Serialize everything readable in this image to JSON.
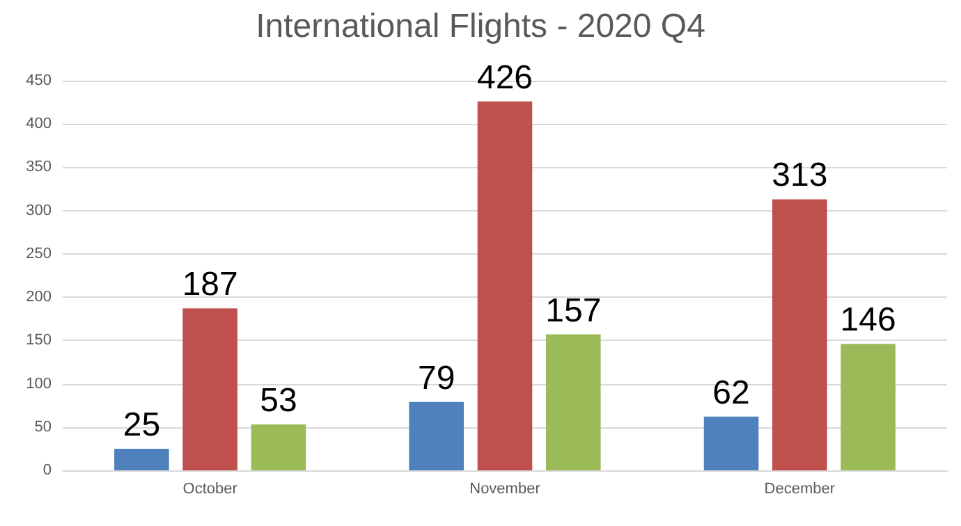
{
  "chart_data": {
    "type": "bar",
    "title": "International Flights - 2020 Q4",
    "categories": [
      "October",
      "November",
      "December"
    ],
    "series": [
      {
        "color": "#4f81bd",
        "values": [
          25,
          79,
          62
        ]
      },
      {
        "color": "#c0504d",
        "values": [
          187,
          426,
          313
        ]
      },
      {
        "color": "#9bbb59",
        "values": [
          53,
          157,
          146
        ]
      }
    ],
    "ylim": [
      0,
      450
    ],
    "yticks": [
      0,
      50,
      100,
      150,
      200,
      250,
      300,
      350,
      400,
      450
    ],
    "grid": "y",
    "data_labels": true
  }
}
